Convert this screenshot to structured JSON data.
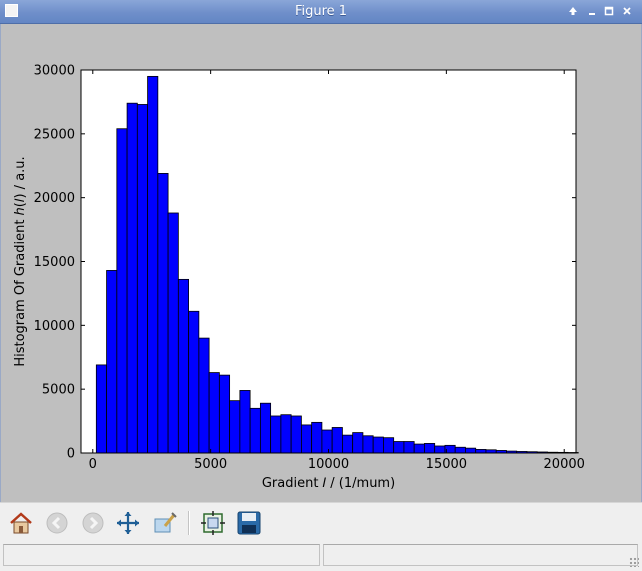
{
  "window": {
    "title": "Figure 1",
    "controls": [
      "restore-up",
      "minimize",
      "maximize",
      "close"
    ]
  },
  "toolbar": {
    "buttons": [
      {
        "name": "home",
        "icon": "home-icon",
        "enabled": true
      },
      {
        "name": "back",
        "icon": "back-arrow-icon",
        "enabled": false
      },
      {
        "name": "forward",
        "icon": "forward-arrow-icon",
        "enabled": false
      },
      {
        "name": "pan",
        "icon": "move-arrows-icon",
        "enabled": true
      },
      {
        "name": "zoom",
        "icon": "zoom-rect-icon",
        "enabled": true
      },
      {
        "name": "subplots",
        "icon": "subplots-config-icon",
        "enabled": true
      },
      {
        "name": "save",
        "icon": "floppy-disk-icon",
        "enabled": true
      }
    ]
  },
  "status": {
    "left_text": "",
    "right_text": ""
  },
  "chart_data": {
    "type": "bar",
    "title": "",
    "xlabel": "Gradient 𝐼 / (1/mum)",
    "ylabel": "Histogram Of Gradient ℎ(𝐼) / a.u.",
    "xlim": [
      -500,
      20500
    ],
    "ylim": [
      0,
      30000
    ],
    "xticks": [
      0,
      5000,
      10000,
      15000,
      20000
    ],
    "yticks": [
      0,
      5000,
      10000,
      15000,
      20000,
      25000,
      30000
    ],
    "grid": false,
    "legend": "none",
    "bar_color": "#0000ff",
    "bin_start": 150,
    "bin_width": 435,
    "values": [
      6900,
      14300,
      25400,
      27400,
      27300,
      29500,
      21900,
      18800,
      13600,
      11100,
      9000,
      6300,
      6100,
      4100,
      4900,
      3500,
      3900,
      2900,
      3000,
      2900,
      2200,
      2400,
      1800,
      2000,
      1400,
      1600,
      1350,
      1250,
      1200,
      900,
      900,
      700,
      750,
      550,
      600,
      450,
      380,
      280,
      250,
      200,
      150,
      120,
      100,
      80,
      60,
      50,
      40
    ]
  }
}
